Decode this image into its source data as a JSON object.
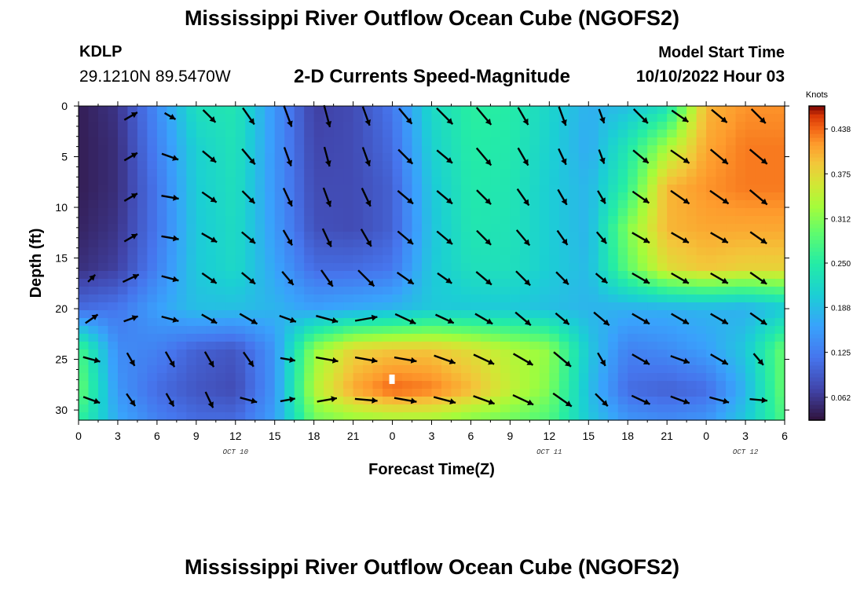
{
  "header": {
    "title": "Mississippi River Outflow Ocean Cube (NGOFS2)",
    "station_id": "KDLP",
    "station_coords": "29.1210N  89.5470W",
    "subtitle": "2-D Currents Speed-Magnitude",
    "model_start_label": "Model Start Time",
    "model_start_value": "10/10/2022 Hour 03"
  },
  "footer": {
    "title": "Mississippi River Outflow Ocean Cube (NGOFS2)"
  },
  "chart_data": {
    "type": "heatmap",
    "xlabel": "Forecast Time(Z)",
    "ylabel": "Depth (ft)",
    "x_ticks": [
      "0",
      "3",
      "6",
      "9",
      "12",
      "15",
      "18",
      "21",
      "0",
      "3",
      "6",
      "9",
      "12",
      "15",
      "18",
      "21",
      "0",
      "3",
      "6"
    ],
    "x_date_labels": [
      {
        "label": "OCT 10",
        "at_hour": 12
      },
      {
        "label": "OCT 11",
        "at_hour": 36
      },
      {
        "label": "OCT 12",
        "at_hour": 51
      }
    ],
    "y_ticks": [
      0,
      5,
      10,
      15,
      20,
      25,
      30
    ],
    "xlim_hours": [
      0,
      54
    ],
    "ylim_ft": [
      0,
      31
    ],
    "colorbar": {
      "unit": "Knots",
      "ticks": [
        "0.062",
        "0.125",
        "0.188",
        "0.250",
        "0.312",
        "0.375",
        "0.438"
      ],
      "range": [
        0.03,
        0.47
      ]
    },
    "time_columns_hours": [
      0,
      3,
      6,
      9,
      12,
      15,
      18,
      21,
      24,
      27,
      30,
      33,
      36,
      39,
      42,
      45,
      48,
      51,
      54
    ],
    "depth_rows_ft": [
      0,
      4,
      8,
      12,
      16,
      20,
      24,
      28,
      31
    ],
    "speed_knots": [
      [
        0.04,
        0.06,
        0.14,
        0.23,
        0.24,
        0.15,
        0.07,
        0.08,
        0.12,
        0.22,
        0.255,
        0.25,
        0.215,
        0.175,
        0.19,
        0.23,
        0.4,
        0.42,
        0.42
      ],
      [
        0.04,
        0.055,
        0.13,
        0.21,
        0.235,
        0.15,
        0.075,
        0.08,
        0.11,
        0.21,
        0.25,
        0.245,
        0.21,
        0.17,
        0.24,
        0.33,
        0.41,
        0.43,
        0.43
      ],
      [
        0.04,
        0.055,
        0.12,
        0.205,
        0.23,
        0.15,
        0.08,
        0.08,
        0.1,
        0.2,
        0.245,
        0.24,
        0.205,
        0.18,
        0.26,
        0.4,
        0.42,
        0.43,
        0.43
      ],
      [
        0.045,
        0.06,
        0.12,
        0.2,
        0.225,
        0.155,
        0.085,
        0.08,
        0.1,
        0.195,
        0.24,
        0.235,
        0.205,
        0.18,
        0.31,
        0.4,
        0.41,
        0.41,
        0.41
      ],
      [
        0.055,
        0.07,
        0.13,
        0.2,
        0.22,
        0.165,
        0.11,
        0.11,
        0.12,
        0.2,
        0.23,
        0.23,
        0.205,
        0.185,
        0.29,
        0.37,
        0.39,
        0.38,
        0.38
      ],
      [
        0.11,
        0.12,
        0.16,
        0.19,
        0.19,
        0.18,
        0.16,
        0.17,
        0.18,
        0.2,
        0.2,
        0.2,
        0.19,
        0.18,
        0.175,
        0.175,
        0.18,
        0.175,
        0.2
      ],
      [
        0.28,
        0.14,
        0.13,
        0.1,
        0.09,
        0.15,
        0.32,
        0.38,
        0.39,
        0.39,
        0.37,
        0.34,
        0.32,
        0.2,
        0.13,
        0.14,
        0.16,
        0.2,
        0.3
      ],
      [
        0.3,
        0.15,
        0.11,
        0.09,
        0.08,
        0.15,
        0.34,
        0.41,
        0.44,
        0.43,
        0.4,
        0.35,
        0.31,
        0.19,
        0.11,
        0.1,
        0.11,
        0.18,
        0.3
      ],
      [
        0.26,
        0.17,
        0.13,
        0.11,
        0.11,
        0.16,
        0.3,
        0.32,
        0.33,
        0.33,
        0.31,
        0.3,
        0.28,
        0.2,
        0.15,
        0.14,
        0.15,
        0.2,
        0.28
      ]
    ],
    "vector_depths_ft": [
      1,
      5,
      9,
      13,
      17,
      21,
      25,
      29
    ],
    "vector_times_hours": [
      1,
      4,
      7,
      10,
      13,
      16,
      19,
      22,
      25,
      28,
      31,
      34,
      37,
      40,
      43,
      46,
      49,
      52
    ],
    "vector_direction_deg_clockwise_from_east": [
      [
        -60,
        -30,
        30,
        45,
        55,
        70,
        75,
        70,
        50,
        45,
        50,
        60,
        70,
        70,
        45,
        35,
        40,
        45
      ],
      [
        -60,
        -30,
        20,
        40,
        50,
        70,
        75,
        70,
        45,
        40,
        50,
        60,
        65,
        70,
        40,
        35,
        40,
        40
      ],
      [
        -60,
        -30,
        10,
        35,
        45,
        65,
        70,
        65,
        40,
        40,
        45,
        55,
        60,
        60,
        35,
        35,
        35,
        40
      ],
      [
        -55,
        -30,
        10,
        30,
        40,
        60,
        65,
        60,
        40,
        40,
        45,
        50,
        55,
        50,
        30,
        30,
        30,
        35
      ],
      [
        -45,
        -25,
        15,
        35,
        40,
        50,
        55,
        45,
        35,
        35,
        40,
        45,
        45,
        40,
        30,
        30,
        30,
        35
      ],
      [
        -35,
        -20,
        15,
        30,
        30,
        20,
        15,
        -10,
        25,
        25,
        30,
        40,
        40,
        40,
        30,
        30,
        30,
        35
      ],
      [
        15,
        60,
        60,
        60,
        55,
        10,
        10,
        10,
        10,
        20,
        25,
        30,
        40,
        60,
        30,
        20,
        30,
        50
      ],
      [
        20,
        55,
        60,
        65,
        15,
        -10,
        -10,
        5,
        10,
        15,
        20,
        25,
        35,
        45,
        25,
        20,
        15,
        5
      ]
    ],
    "vector_length_scale": [
      [
        0,
        0.6,
        0.5,
        0.7,
        0.8,
        0.9,
        0.9,
        0.8,
        0.8,
        0.9,
        0.9,
        0.8,
        0.8,
        0.6,
        0.8,
        0.8,
        0.8,
        0.8
      ],
      [
        0,
        0.6,
        0.7,
        0.7,
        0.8,
        0.8,
        0.8,
        0.8,
        0.8,
        0.8,
        0.9,
        0.8,
        0.7,
        0.6,
        0.8,
        0.9,
        0.9,
        0.9
      ],
      [
        0,
        0.6,
        0.7,
        0.7,
        0.7,
        0.8,
        0.8,
        0.8,
        0.8,
        0.8,
        0.8,
        0.8,
        0.7,
        0.6,
        0.8,
        0.9,
        0.9,
        0.9
      ],
      [
        0,
        0.6,
        0.7,
        0.7,
        0.7,
        0.7,
        0.8,
        0.8,
        0.8,
        0.8,
        0.8,
        0.8,
        0.7,
        0.6,
        0.8,
        0.8,
        0.8,
        0.8
      ],
      [
        0.4,
        0.7,
        0.7,
        0.7,
        0.7,
        0.7,
        0.8,
        0.9,
        0.8,
        0.7,
        0.8,
        0.8,
        0.7,
        0.6,
        0.8,
        0.8,
        0.8,
        0.8
      ],
      [
        0.6,
        0.6,
        0.7,
        0.7,
        0.8,
        0.7,
        0.9,
        0.9,
        0.9,
        0.8,
        0.8,
        0.8,
        0.7,
        0.8,
        0.8,
        0.8,
        0.8,
        0.8
      ],
      [
        0.7,
        0.6,
        0.7,
        0.7,
        0.7,
        0.6,
        0.9,
        0.9,
        0.9,
        0.9,
        0.9,
        0.9,
        0.9,
        0.6,
        0.8,
        0.8,
        0.8,
        0.6
      ],
      [
        0.7,
        0.6,
        0.6,
        0.7,
        0.7,
        0.6,
        0.8,
        0.9,
        0.9,
        0.9,
        0.9,
        0.9,
        0.9,
        0.7,
        0.8,
        0.8,
        0.8,
        0.7
      ]
    ]
  }
}
